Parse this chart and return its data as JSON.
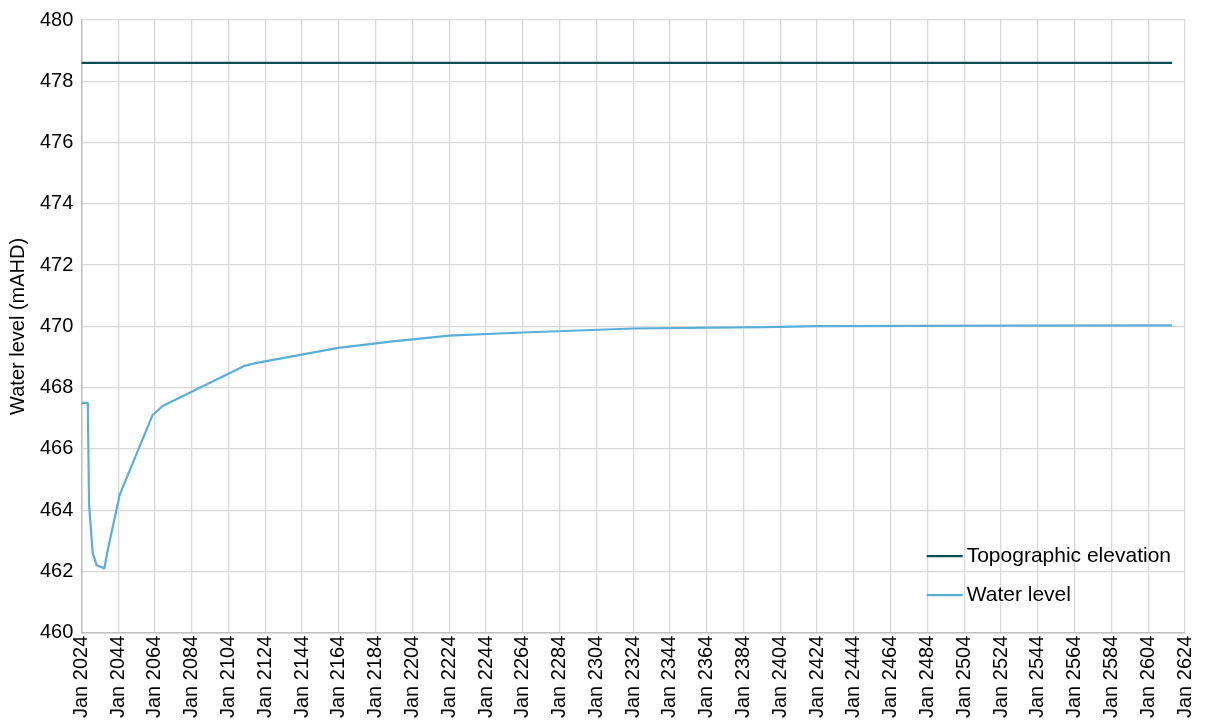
{
  "chart_data": {
    "type": "line",
    "ylabel": "Water level (mAHD)",
    "xlim": [
      "2024-01",
      "2624-01"
    ],
    "xticks": [
      {
        "value": "2024-01",
        "label": "Jan 2024"
      },
      {
        "value": "2044-01",
        "label": "Jan 2044"
      },
      {
        "value": "2064-01",
        "label": "Jan 2064"
      },
      {
        "value": "2084-01",
        "label": "Jan 2084"
      },
      {
        "value": "2104-01",
        "label": "Jan 2104"
      },
      {
        "value": "2124-01",
        "label": "Jan 2124"
      },
      {
        "value": "2144-01",
        "label": "Jan 2144"
      },
      {
        "value": "2164-01",
        "label": "Jan 2164"
      },
      {
        "value": "2184-01",
        "label": "Jan 2184"
      },
      {
        "value": "2204-01",
        "label": "Jan 2204"
      },
      {
        "value": "2224-01",
        "label": "Jan 2224"
      },
      {
        "value": "2244-01",
        "label": "Jan 2244"
      },
      {
        "value": "2264-01",
        "label": "Jan 2264"
      },
      {
        "value": "2284-01",
        "label": "Jan 2284"
      },
      {
        "value": "2304-01",
        "label": "Jan 2304"
      },
      {
        "value": "2324-01",
        "label": "Jan 2324"
      },
      {
        "value": "2344-01",
        "label": "Jan 2344"
      },
      {
        "value": "2364-01",
        "label": "Jan 2364"
      },
      {
        "value": "2384-01",
        "label": "Jan 2384"
      },
      {
        "value": "2404-01",
        "label": "Jan 2404"
      },
      {
        "value": "2424-01",
        "label": "Jan 2424"
      },
      {
        "value": "2444-01",
        "label": "Jan 2444"
      },
      {
        "value": "2464-01",
        "label": "Jan 2464"
      },
      {
        "value": "2484-01",
        "label": "Jan 2484"
      },
      {
        "value": "2504-01",
        "label": "Jan 2504"
      },
      {
        "value": "2524-01",
        "label": "Jan 2524"
      },
      {
        "value": "2544-01",
        "label": "Jan 2544"
      },
      {
        "value": "2564-01",
        "label": "Jan 2564"
      },
      {
        "value": "2584-01",
        "label": "Jan 2584"
      },
      {
        "value": "2604-01",
        "label": "Jan 2604"
      },
      {
        "value": "2624-01",
        "label": "Jan 2624"
      }
    ],
    "ylim": [
      460,
      480
    ],
    "yticks": [
      460,
      462,
      464,
      466,
      468,
      470,
      472,
      474,
      476,
      478,
      480
    ],
    "grid": true,
    "legend": "bottom right",
    "marker": "none",
    "line_style": "solid",
    "series": [
      {
        "name": "Topographic elevation",
        "color": "#0f4c55",
        "x": [
          "2024-01",
          "2617-01"
        ],
        "values": [
          478.6,
          478.6
        ]
      },
      {
        "name": "Water level",
        "color": "#5aafd9",
        "x": [
          "2024-01",
          "2027-07",
          "2028-03",
          "2030-03",
          "2032-05",
          "2036-07",
          "2038-01",
          "2044-11",
          "2062-09",
          "2068-03",
          "2112-04",
          "2118-09",
          "2163-09",
          "2192-03",
          "2224-01",
          "2264-01",
          "2324-01",
          "2404-01",
          "2424-01",
          "2617-01"
        ],
        "values": [
          467.5,
          467.5,
          464.2,
          462.6,
          462.2,
          462.1,
          462.6,
          464.5,
          467.1,
          467.4,
          468.7,
          468.8,
          469.3,
          469.5,
          469.7,
          469.8,
          469.93,
          469.98,
          470.01,
          470.03
        ]
      }
    ]
  }
}
